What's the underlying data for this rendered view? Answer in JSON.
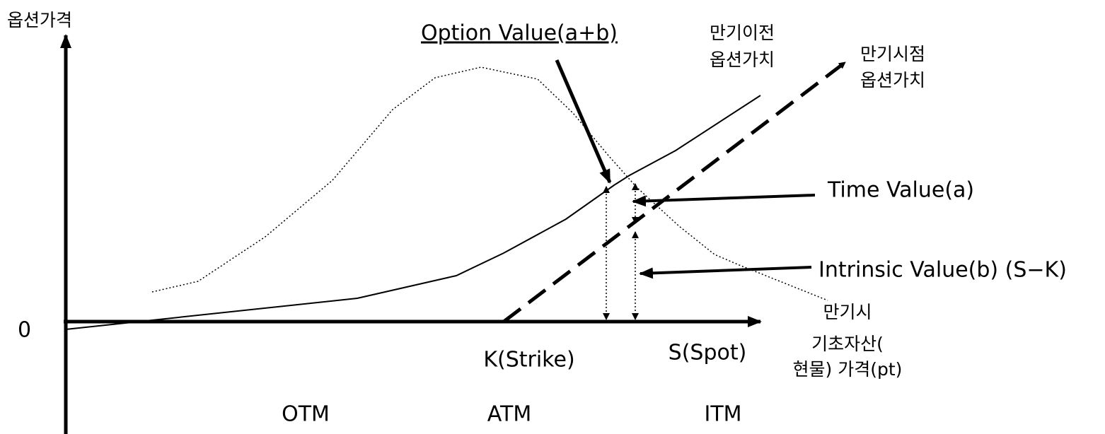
{
  "y_axis_label": "옵션가격",
  "zero_label": "0",
  "option_value_label": "Option Value(a+b)",
  "before_expiry_label": [
    "만기이전",
    "옵션가치"
  ],
  "at_expiry_label": [
    "만기시점",
    "옵션가치"
  ],
  "time_value_label": "Time Value(a)",
  "intrinsic_value_label": "Intrinsic Value(b) (S−K)",
  "x_axis_label": [
    "만기시",
    "기초자산(",
    "현물) 가격(pt)"
  ],
  "strike_label": "K(Strike)",
  "spot_label": "S(Spot)",
  "zones": [
    "OTM",
    "ATM",
    "ITM"
  ]
}
